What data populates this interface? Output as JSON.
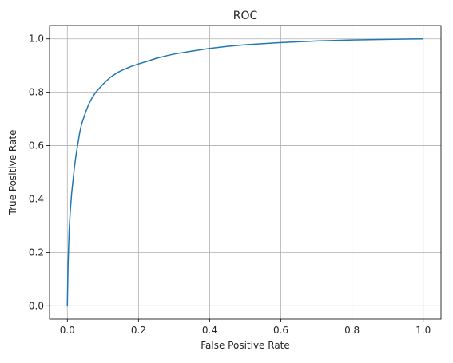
{
  "chart_data": {
    "type": "line",
    "title": "ROC",
    "xlabel": "False Positive Rate",
    "ylabel": "True Positive Rate",
    "xlim": [
      -0.05,
      1.05
    ],
    "ylim": [
      -0.05,
      1.05
    ],
    "grid": true,
    "xticks": [
      0.0,
      0.2,
      0.4,
      0.6,
      0.8,
      1.0
    ],
    "yticks": [
      0.0,
      0.2,
      0.4,
      0.6,
      0.8,
      1.0
    ],
    "xtick_labels": [
      "0.0",
      "0.2",
      "0.4",
      "0.6",
      "0.8",
      "1.0"
    ],
    "ytick_labels": [
      "0.0",
      "0.2",
      "0.4",
      "0.6",
      "0.8",
      "1.0"
    ],
    "colors": {
      "line": "#1f77b4",
      "grid": "#b0b0b0",
      "axes": "#000000"
    },
    "series": [
      {
        "x": [
          0.0,
          0.002,
          0.005,
          0.008,
          0.012,
          0.016,
          0.02,
          0.025,
          0.03,
          0.035,
          0.04,
          0.05,
          0.06,
          0.07,
          0.08,
          0.09,
          0.1,
          0.12,
          0.14,
          0.16,
          0.18,
          0.2,
          0.22,
          0.25,
          0.28,
          0.3,
          0.35,
          0.4,
          0.45,
          0.5,
          0.55,
          0.6,
          0.65,
          0.7,
          0.75,
          0.8,
          0.85,
          0.9,
          0.95,
          1.0
        ],
        "y": [
          0.0,
          0.15,
          0.28,
          0.35,
          0.42,
          0.47,
          0.52,
          0.57,
          0.61,
          0.65,
          0.68,
          0.72,
          0.755,
          0.78,
          0.8,
          0.815,
          0.83,
          0.855,
          0.873,
          0.886,
          0.897,
          0.906,
          0.914,
          0.927,
          0.937,
          0.943,
          0.954,
          0.964,
          0.972,
          0.978,
          0.982,
          0.986,
          0.989,
          0.992,
          0.994,
          0.996,
          0.997,
          0.998,
          0.999,
          1.0
        ]
      }
    ]
  }
}
